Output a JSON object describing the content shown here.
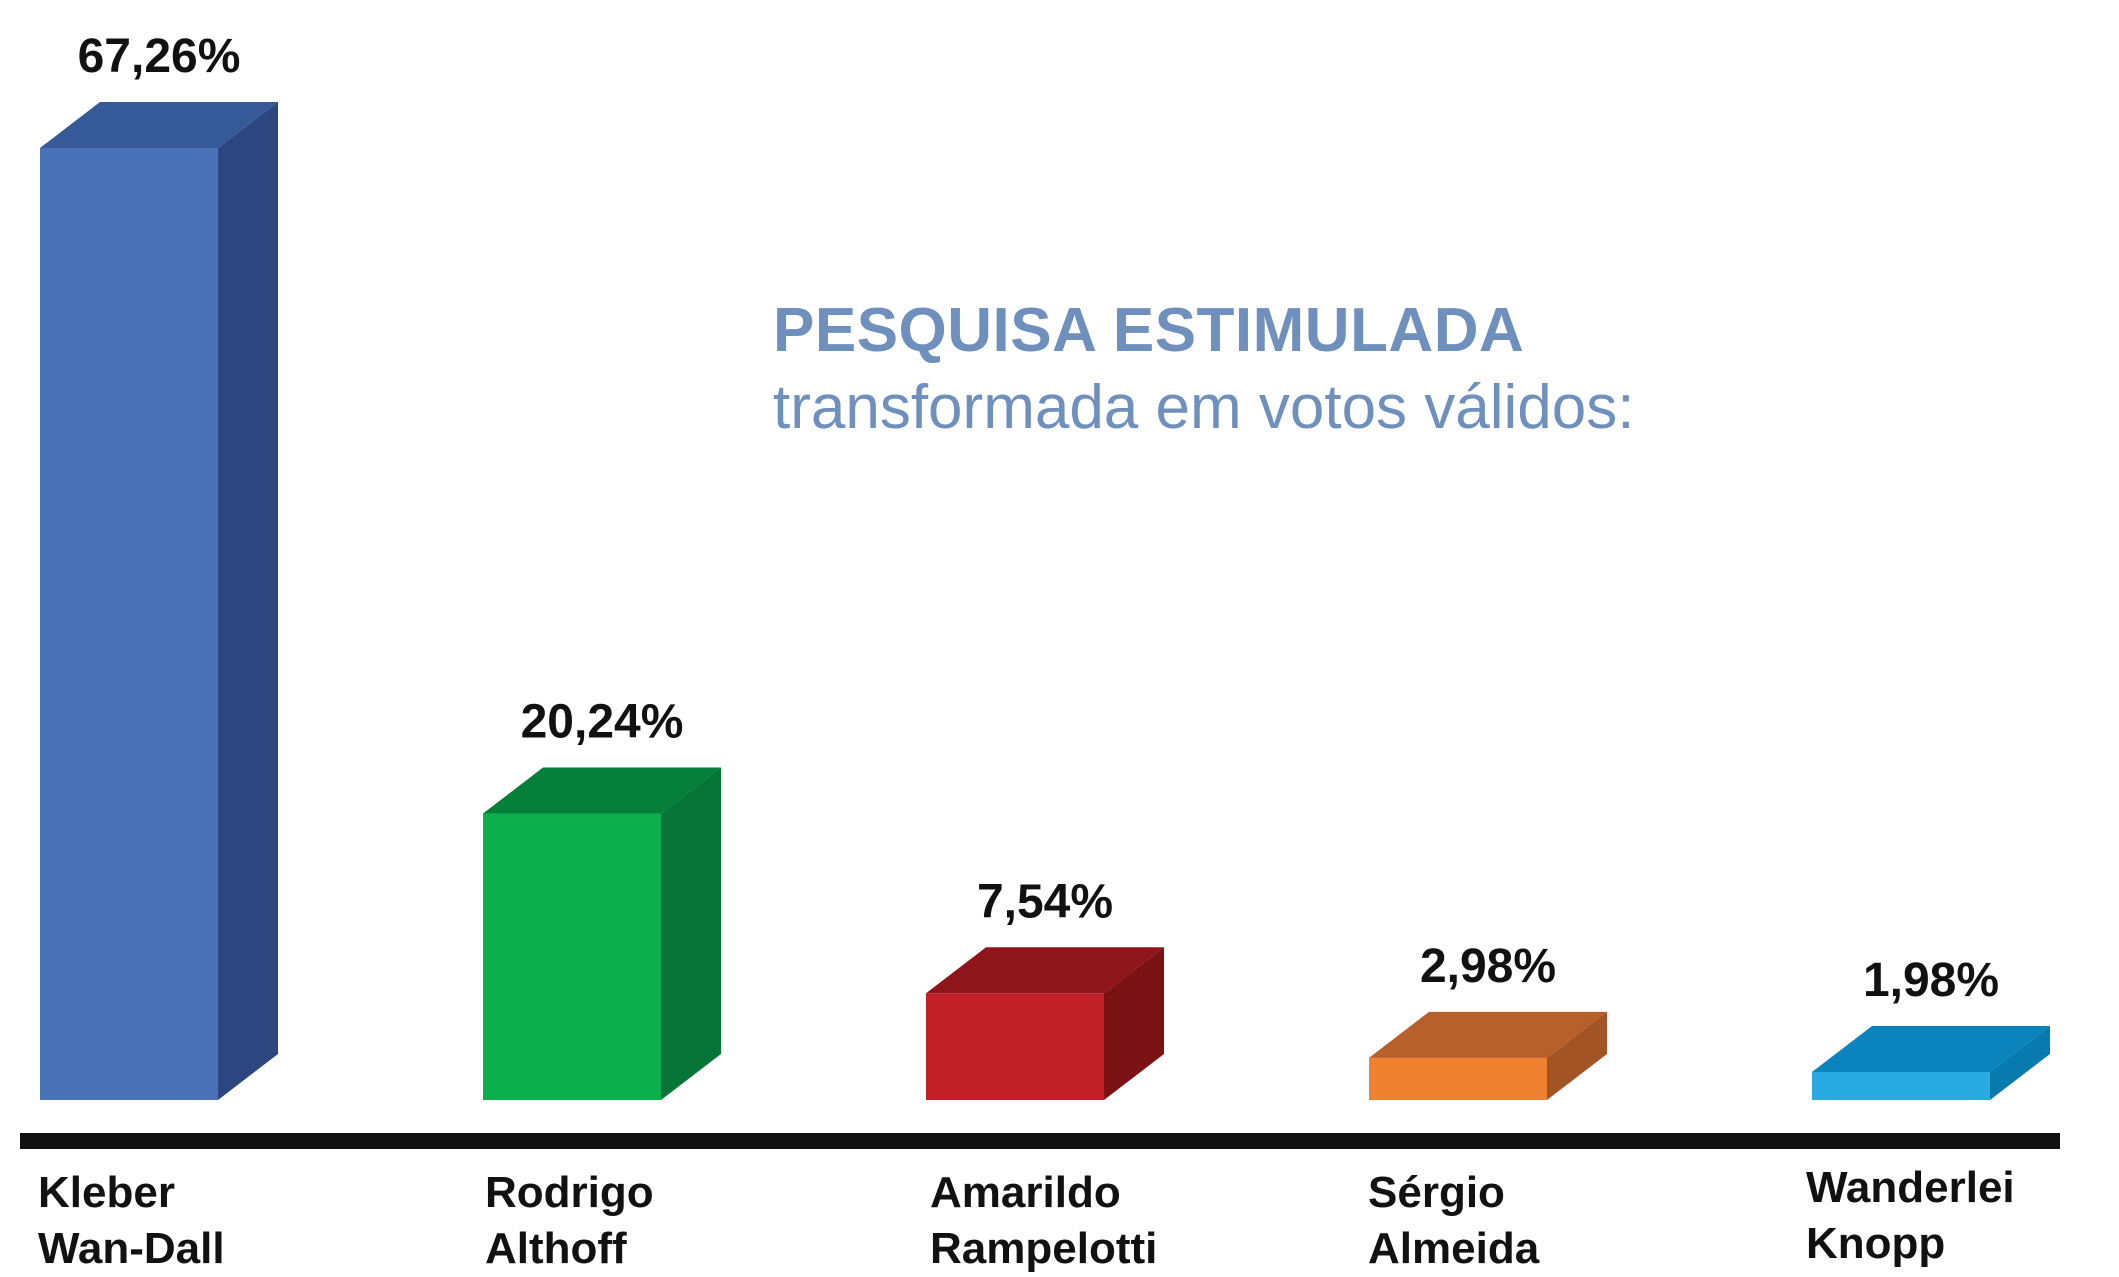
{
  "chart_data": {
    "type": "bar",
    "title": "PESQUISA ESTIMULADA",
    "subtitle": "transformada em votos válidos:",
    "ylim": [
      0,
      67.26
    ],
    "categories": [
      [
        "Kleber",
        "Wan-Dall"
      ],
      [
        "Rodrigo",
        "Althoff"
      ],
      [
        "Amarildo",
        "Rampelotti"
      ],
      [
        "Sérgio",
        "Almeida"
      ],
      [
        "Wanderlei",
        "Knopp"
      ]
    ],
    "values": [
      67.26,
      20.24,
      7.54,
      2.98,
      1.98
    ],
    "value_labels": [
      "67,26%",
      "20,24%",
      "7,54%",
      "2,98%",
      "1,98%"
    ],
    "colors": [
      {
        "front": "#4a72b8",
        "top": "#365a97",
        "side": "#2c477f"
      },
      {
        "front": "#0bb04d",
        "top": "#067f3a",
        "side": "#077537"
      },
      {
        "front": "#c02026",
        "top": "#8e161b",
        "side": "#7b1216"
      },
      {
        "front": "#ef8130",
        "top": "#b8602c",
        "side": "#a25424"
      },
      {
        "front": "#29abe2",
        "top": "#0b84bd",
        "side": "#087aae"
      }
    ]
  }
}
